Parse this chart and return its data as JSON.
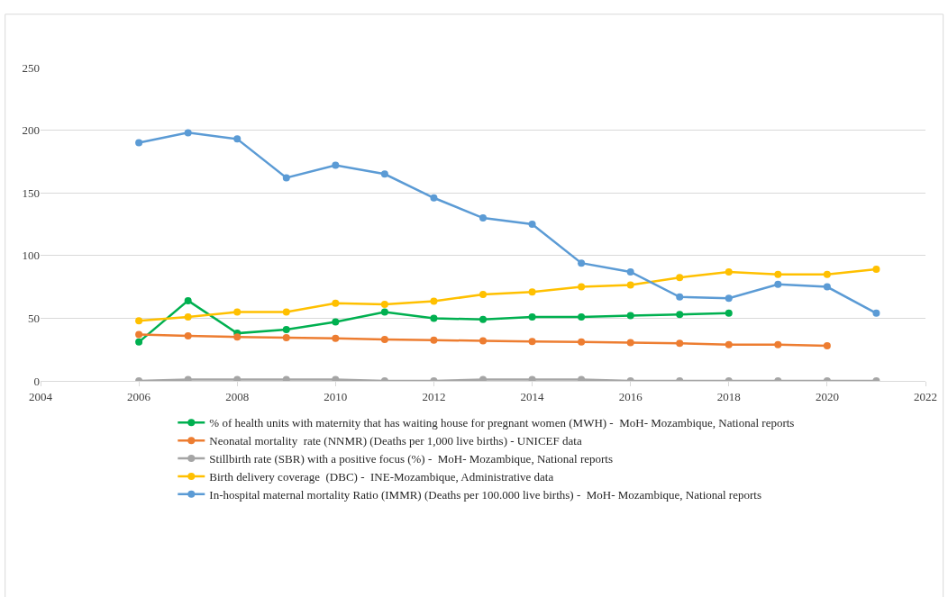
{
  "chart_data": {
    "type": "line",
    "x": [
      2006,
      2007,
      2008,
      2009,
      2010,
      2011,
      2012,
      2013,
      2014,
      2015,
      2016,
      2017,
      2018,
      2019,
      2020,
      2021
    ],
    "series": [
      {
        "name": "% of health units with maternity that has waiting house for pregnant women (MWH) -  MoH- Mozambique, National reports",
        "color": "#00b050",
        "values": [
          31,
          64,
          38,
          41,
          47,
          55,
          50,
          49,
          51,
          51,
          52,
          53,
          54,
          null,
          null,
          null
        ]
      },
      {
        "name": "Neonatal mortality  rate (NNMR) (Deaths per 1,000 live births) - UNICEF data",
        "color": "#ed7d31",
        "values": [
          37,
          36,
          35,
          34.5,
          34,
          33,
          32.5,
          32,
          31.5,
          31,
          30.5,
          30,
          29,
          29,
          28,
          null
        ]
      },
      {
        "name": "Stillbirth rate (SBR) with a positive focus (%) -  MoH- Mozambique, National reports",
        "color": "#a5a5a5",
        "values": [
          0,
          1,
          1,
          1,
          1,
          0,
          0,
          1,
          1,
          1,
          0,
          0,
          0,
          0,
          0,
          0
        ]
      },
      {
        "name": "Birth delivery coverage  (DBC) -  INE-Mozambique, Administrative data",
        "color": "#ffc000",
        "values": [
          48,
          51,
          55,
          55,
          62,
          61,
          63.5,
          69,
          71,
          75,
          76.5,
          82.5,
          87,
          85,
          85,
          89
        ]
      },
      {
        "name": "In-hospital maternal mortality Ratio (IMMR) (Deaths per 100.000 live births) -  MoH- Mozambique, National reports",
        "color": "#5b9bd5",
        "values": [
          190,
          198,
          193,
          162,
          172,
          165,
          146,
          130,
          125,
          94,
          87,
          67,
          66,
          77,
          75,
          54
        ]
      }
    ],
    "xlim": [
      2004,
      2022
    ],
    "xticks": [
      2004,
      2006,
      2008,
      2010,
      2012,
      2014,
      2016,
      2018,
      2020,
      2022
    ],
    "ylim": [
      0,
      250
    ],
    "yticks": [
      0,
      50,
      100,
      150,
      200,
      250
    ],
    "grid": "y",
    "legend": "bottom",
    "marker": "circle",
    "line_style": "solid"
  }
}
